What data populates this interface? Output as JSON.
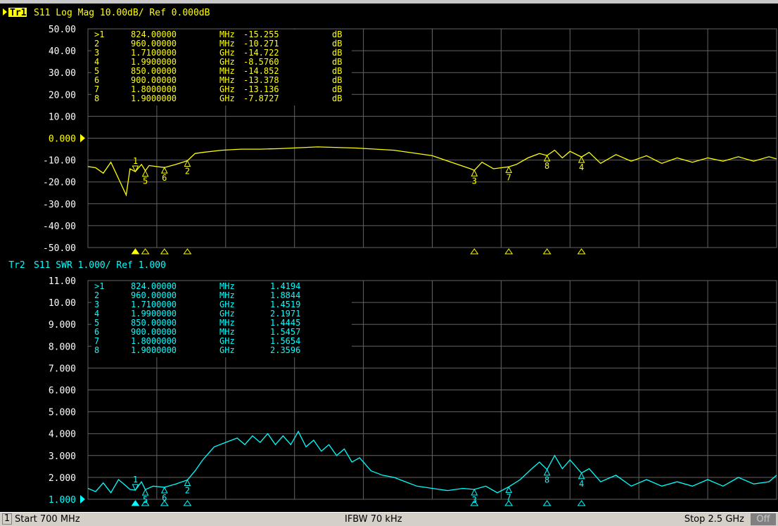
{
  "window": {
    "title": ""
  },
  "colors": {
    "trace1": "#ffff00",
    "trace2": "#00ffff",
    "grid": "#646464",
    "background": "#000000"
  },
  "status_bar": {
    "channel": "1",
    "start": "Start 700 MHz",
    "ifbw": "IFBW 70 kHz",
    "stop": "Stop 2.5 GHz",
    "rf_state": "Off"
  },
  "chart_data": [
    {
      "type": "line",
      "title": "S11  Log Mag 10.00dB/ Ref 0.000dB",
      "trace_label": "Tr1",
      "active": true,
      "ref_value": "0.000",
      "ref_numeric": 0,
      "ylim": [
        -50,
        50
      ],
      "xlim_mhz": [
        700,
        2500
      ],
      "grid": true,
      "y_ticks": [
        "50.00",
        "40.00",
        "30.00",
        "20.00",
        "10.00",
        "0.000",
        "-10.00",
        "-20.00",
        "-30.00",
        "-40.00",
        "-50.00"
      ],
      "series": [
        {
          "x_mhz": [
            700,
            720,
            740,
            760,
            780,
            800,
            810,
            824,
            840,
            850,
            860,
            880,
            900,
            930,
            960,
            980,
            1000,
            1050,
            1100,
            1150,
            1200,
            1300,
            1400,
            1500,
            1600,
            1650,
            1700,
            1710,
            1730,
            1760,
            1800,
            1820,
            1850,
            1880,
            1900,
            1920,
            1940,
            1960,
            1990,
            2010,
            2040,
            2080,
            2120,
            2160,
            2200,
            2240,
            2280,
            2320,
            2360,
            2400,
            2440,
            2480,
            2500
          ],
          "y_db": [
            -13,
            -13.5,
            -16,
            -11,
            -18.5,
            -26,
            -14,
            -15.3,
            -12,
            -14.9,
            -12.5,
            -13,
            -13.4,
            -12,
            -10.3,
            -7,
            -6.5,
            -5.5,
            -5,
            -5,
            -4.8,
            -4,
            -4.5,
            -5.5,
            -8,
            -11,
            -14,
            -14.7,
            -11,
            -14,
            -13.1,
            -12,
            -9,
            -7,
            -7.9,
            -5.5,
            -9,
            -6,
            -8.6,
            -6.5,
            -11.5,
            -7.5,
            -10.5,
            -8,
            -11.5,
            -9,
            -11,
            -9,
            -10.5,
            -8.5,
            -10.5,
            -8.5,
            -9.5
          ]
        }
      ],
      "markers": [
        {
          "n": "1",
          "label": ">1",
          "freq": "824.00000",
          "unit": "MHz",
          "value": "-15.255",
          "vunit": "dB",
          "f": 824,
          "v": -15.255
        },
        {
          "n": "2",
          "label": "2",
          "freq": "960.00000",
          "unit": "MHz",
          "value": "-10.271",
          "vunit": "dB",
          "f": 960,
          "v": -10.271
        },
        {
          "n": "3",
          "label": "3",
          "freq": "1.7100000",
          "unit": "GHz",
          "value": "-14.722",
          "vunit": "dB",
          "f": 1710,
          "v": -14.722
        },
        {
          "n": "4",
          "label": "4",
          "freq": "1.9900000",
          "unit": "GHz",
          "value": "-8.5760",
          "vunit": "dB",
          "f": 1990,
          "v": -8.576
        },
        {
          "n": "5",
          "label": "5",
          "freq": "850.00000",
          "unit": "MHz",
          "value": "-14.852",
          "vunit": "dB",
          "f": 850,
          "v": -14.852
        },
        {
          "n": "6",
          "label": "6",
          "freq": "900.00000",
          "unit": "MHz",
          "value": "-13.378",
          "vunit": "dB",
          "f": 900,
          "v": -13.378
        },
        {
          "n": "7",
          "label": "7",
          "freq": "1.8000000",
          "unit": "GHz",
          "value": "-13.136",
          "vunit": "dB",
          "f": 1800,
          "v": -13.136
        },
        {
          "n": "8",
          "label": "8",
          "freq": "1.9000000",
          "unit": "GHz",
          "value": "-7.8727",
          "vunit": "dB",
          "f": 1900,
          "v": -7.8727
        }
      ]
    },
    {
      "type": "line",
      "title": "S11  SWR 1.000/ Ref 1.000",
      "trace_label": "Tr2",
      "active": false,
      "ref_value": "1.000",
      "ref_numeric": 1,
      "ylim": [
        1,
        11
      ],
      "xlim_mhz": [
        700,
        2500
      ],
      "grid": true,
      "y_ticks": [
        "11.00",
        "10.00",
        "9.000",
        "8.000",
        "7.000",
        "6.000",
        "5.000",
        "4.000",
        "3.000",
        "2.000",
        "1.000"
      ],
      "series": [
        {
          "x_mhz": [
            700,
            720,
            740,
            760,
            780,
            800,
            810,
            824,
            840,
            850,
            870,
            900,
            930,
            960,
            980,
            1000,
            1030,
            1060,
            1090,
            1110,
            1130,
            1150,
            1170,
            1190,
            1210,
            1230,
            1250,
            1270,
            1290,
            1310,
            1330,
            1350,
            1370,
            1390,
            1410,
            1440,
            1470,
            1500,
            1530,
            1560,
            1600,
            1640,
            1680,
            1710,
            1740,
            1770,
            1800,
            1830,
            1860,
            1880,
            1900,
            1920,
            1940,
            1960,
            1990,
            2010,
            2040,
            2080,
            2120,
            2160,
            2200,
            2240,
            2280,
            2320,
            2360,
            2400,
            2440,
            2480,
            2500
          ],
          "y_swr": [
            1.5,
            1.35,
            1.75,
            1.3,
            1.9,
            1.6,
            1.45,
            1.42,
            1.8,
            1.44,
            1.6,
            1.55,
            1.7,
            1.88,
            2.3,
            2.8,
            3.4,
            3.6,
            3.8,
            3.5,
            3.9,
            3.6,
            4.0,
            3.5,
            3.9,
            3.5,
            4.1,
            3.4,
            3.7,
            3.2,
            3.5,
            3.0,
            3.3,
            2.7,
            2.9,
            2.3,
            2.1,
            2.0,
            1.8,
            1.6,
            1.5,
            1.4,
            1.5,
            1.45,
            1.6,
            1.3,
            1.57,
            1.9,
            2.4,
            2.7,
            2.36,
            3.0,
            2.4,
            2.8,
            2.2,
            2.4,
            1.8,
            2.1,
            1.6,
            1.9,
            1.6,
            1.8,
            1.6,
            1.9,
            1.6,
            2.0,
            1.7,
            1.8,
            2.1
          ]
        }
      ],
      "markers": [
        {
          "n": "1",
          "label": ">1",
          "freq": "824.00000",
          "unit": "MHz",
          "value": "1.4194",
          "vunit": "",
          "f": 824,
          "v": 1.4194
        },
        {
          "n": "2",
          "label": "2",
          "freq": "960.00000",
          "unit": "MHz",
          "value": "1.8844",
          "vunit": "",
          "f": 960,
          "v": 1.8844
        },
        {
          "n": "3",
          "label": "3",
          "freq": "1.7100000",
          "unit": "GHz",
          "value": "1.4519",
          "vunit": "",
          "f": 1710,
          "v": 1.4519
        },
        {
          "n": "4",
          "label": "4",
          "freq": "1.9900000",
          "unit": "GHz",
          "value": "2.1971",
          "vunit": "",
          "f": 1990,
          "v": 2.1971
        },
        {
          "n": "5",
          "label": "5",
          "freq": "850.00000",
          "unit": "MHz",
          "value": "1.4445",
          "vunit": "",
          "f": 850,
          "v": 1.4445
        },
        {
          "n": "6",
          "label": "6",
          "freq": "900.00000",
          "unit": "MHz",
          "value": "1.5457",
          "vunit": "",
          "f": 900,
          "v": 1.5457
        },
        {
          "n": "7",
          "label": "7",
          "freq": "1.8000000",
          "unit": "GHz",
          "value": "1.5654",
          "vunit": "",
          "f": 1800,
          "v": 1.5654
        },
        {
          "n": "8",
          "label": "8",
          "freq": "1.9000000",
          "unit": "GHz",
          "value": "2.3596",
          "vunit": "",
          "f": 1900,
          "v": 2.3596
        }
      ]
    }
  ]
}
